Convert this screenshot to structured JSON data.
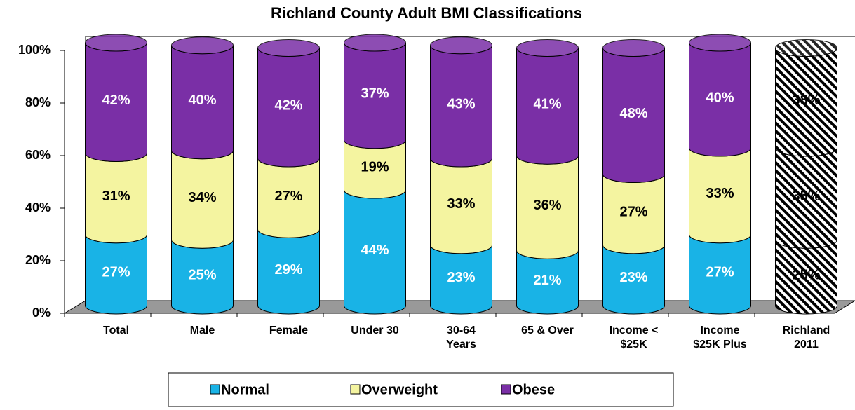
{
  "chart_data": {
    "type": "stacked_cylinder",
    "title": "Richland County Adult BMI Classifications",
    "categories": [
      "Total",
      "Male",
      "Female",
      "Under 30",
      "30-64\nYears",
      "65 & Over",
      "Income <\n$25K",
      "Income\n$25K Plus",
      "Richland\n2011"
    ],
    "series": [
      {
        "name": "Normal",
        "color": "#19b3e6",
        "values": [
          27,
          25,
          29,
          44,
          23,
          21,
          23,
          27,
          25
        ],
        "value_labels": [
          "27%",
          "25%",
          "29%",
          "44%",
          "23%",
          "21%",
          "23%",
          "27%",
          "25%"
        ]
      },
      {
        "name": "Overweight",
        "color": "#f4f4a0",
        "values": [
          31,
          34,
          27,
          19,
          33,
          36,
          27,
          33,
          35
        ],
        "value_labels": [
          "31%",
          "34%",
          "27%",
          "19%",
          "33%",
          "36%",
          "27%",
          "33%",
          "35%"
        ]
      },
      {
        "name": "Obese",
        "color": "#7a2fa6",
        "values": [
          42,
          40,
          42,
          37,
          43,
          41,
          48,
          40,
          38
        ],
        "value_labels": [
          "42%",
          "40%",
          "42%",
          "37%",
          "43%",
          "41%",
          "48%",
          "40%",
          "38%"
        ]
      }
    ],
    "ylim": [
      0,
      100
    ],
    "yticks": [
      {
        "value": 0,
        "label": "0%"
      },
      {
        "value": 20,
        "label": "20%"
      },
      {
        "value": 40,
        "label": "40%"
      },
      {
        "value": 60,
        "label": "60%"
      },
      {
        "value": 80,
        "label": "80%"
      },
      {
        "value": 100,
        "label": "100%"
      }
    ],
    "legend": "bottom"
  }
}
